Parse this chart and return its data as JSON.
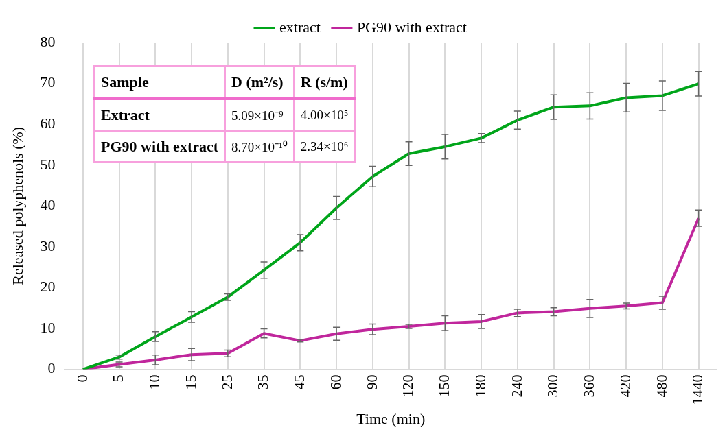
{
  "chart_data": {
    "type": "line",
    "xlabel": "Time (min)",
    "ylabel": "Released polyphenols (%)",
    "categories": [
      "0",
      "5",
      "10",
      "15",
      "25",
      "35",
      "45",
      "60",
      "90",
      "120",
      "150",
      "180",
      "240",
      "300",
      "360",
      "420",
      "480",
      "1440"
    ],
    "series": [
      {
        "name": "extract",
        "color": "#00a51a",
        "values": [
          0,
          3,
          8,
          12.8,
          17.7,
          24.3,
          31,
          39.5,
          47.2,
          52.8,
          54.5,
          56.6,
          61,
          64.2,
          64.5,
          66.5,
          67,
          69.9
        ],
        "errors": [
          null,
          0.5,
          1.2,
          1.3,
          0.8,
          2,
          2,
          2.8,
          2.5,
          2.9,
          3,
          1.1,
          2.2,
          3,
          3.2,
          3.5,
          3.6,
          3
        ]
      },
      {
        "name": "PG90 with extract",
        "color": "#c0269c",
        "values": [
          0,
          1.2,
          2.3,
          3.6,
          3.9,
          8.8,
          7,
          8.7,
          9.8,
          10.5,
          11.3,
          11.7,
          13.8,
          14.1,
          14.9,
          15.5,
          16.3,
          37
        ],
        "errors": [
          null,
          0.6,
          1.2,
          1.5,
          0.8,
          1.1,
          0.3,
          1.6,
          1.3,
          0.5,
          1.8,
          1.7,
          0.9,
          1,
          2.2,
          0.7,
          1.6,
          2
        ]
      }
    ],
    "ylim": [
      0,
      80
    ],
    "yticks": [
      0,
      10,
      20,
      30,
      40,
      50,
      60,
      70,
      80
    ],
    "grid": "x",
    "legend": "top",
    "marker": "none",
    "line_style": "solid",
    "annotations": [
      "Sample",
      "D (m²/s)",
      "R (s/m)",
      "Extract",
      "5.09×10⁻⁹",
      "4.00×10⁵",
      "PG90 with extract",
      "8.70×10⁻¹⁰",
      "2.34×10⁶"
    ]
  }
}
